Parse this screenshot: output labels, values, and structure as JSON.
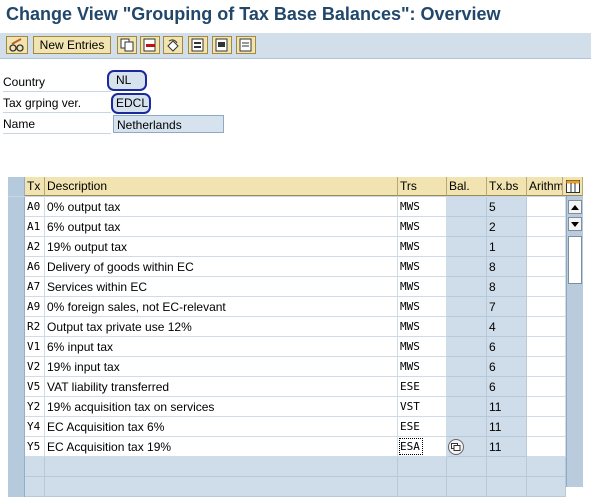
{
  "title": "Change View \"Grouping of Tax Base Balances\": Overview",
  "toolbar": {
    "new_entries_label": "New Entries",
    "icons": [
      "pencil-glasses-icon",
      "copy-icon",
      "delete-icon",
      "undo-icon",
      "select-all-icon",
      "select-block-icon",
      "deselect-all-icon"
    ]
  },
  "header": {
    "country_label": "Country",
    "country_value": "NL",
    "grouping_label": "Tax grping ver.",
    "grouping_value": "EDCL",
    "name_label": "Name",
    "name_value": "Netherlands"
  },
  "table": {
    "columns": [
      "Tx",
      "Description",
      "Trs",
      "Bal.",
      "Tx.bs",
      "Arithm"
    ],
    "rows": [
      {
        "tx": "A0",
        "desc": "0% output tax",
        "trs": "MWS",
        "bal": "",
        "txbs": "5"
      },
      {
        "tx": "A1",
        "desc": "6% output tax",
        "trs": "MWS",
        "bal": "",
        "txbs": "2"
      },
      {
        "tx": "A2",
        "desc": "19% output tax",
        "trs": "MWS",
        "bal": "",
        "txbs": "1"
      },
      {
        "tx": "A6",
        "desc": "Delivery of goods within EC",
        "trs": "MWS",
        "bal": "",
        "txbs": "8"
      },
      {
        "tx": "A7",
        "desc": "Services within EC",
        "trs": "MWS",
        "bal": "",
        "txbs": "8"
      },
      {
        "tx": "A9",
        "desc": "0% foreign sales, not EC-relevant",
        "trs": "MWS",
        "bal": "",
        "txbs": "7"
      },
      {
        "tx": "R2",
        "desc": "Output tax private use 12%",
        "trs": "MWS",
        "bal": "",
        "txbs": "4"
      },
      {
        "tx": "V1",
        "desc": "6% input tax",
        "trs": "MWS",
        "bal": "",
        "txbs": "6"
      },
      {
        "tx": "V2",
        "desc": "19% input tax",
        "trs": "MWS",
        "bal": "",
        "txbs": "6"
      },
      {
        "tx": "V5",
        "desc": "VAT liability transferred",
        "trs": "ESE",
        "bal": "",
        "txbs": "6"
      },
      {
        "tx": "Y2",
        "desc": "19% acquisition tax on services",
        "trs": "VST",
        "bal": "",
        "txbs": "11"
      },
      {
        "tx": "Y4",
        "desc": "EC Acquisition tax 6%",
        "trs": "ESE",
        "bal": "",
        "txbs": "11"
      },
      {
        "tx": "Y5",
        "desc": "EC Acquisition tax 19%",
        "trs": "ESA",
        "bal": "",
        "txbs": "11"
      }
    ]
  }
}
